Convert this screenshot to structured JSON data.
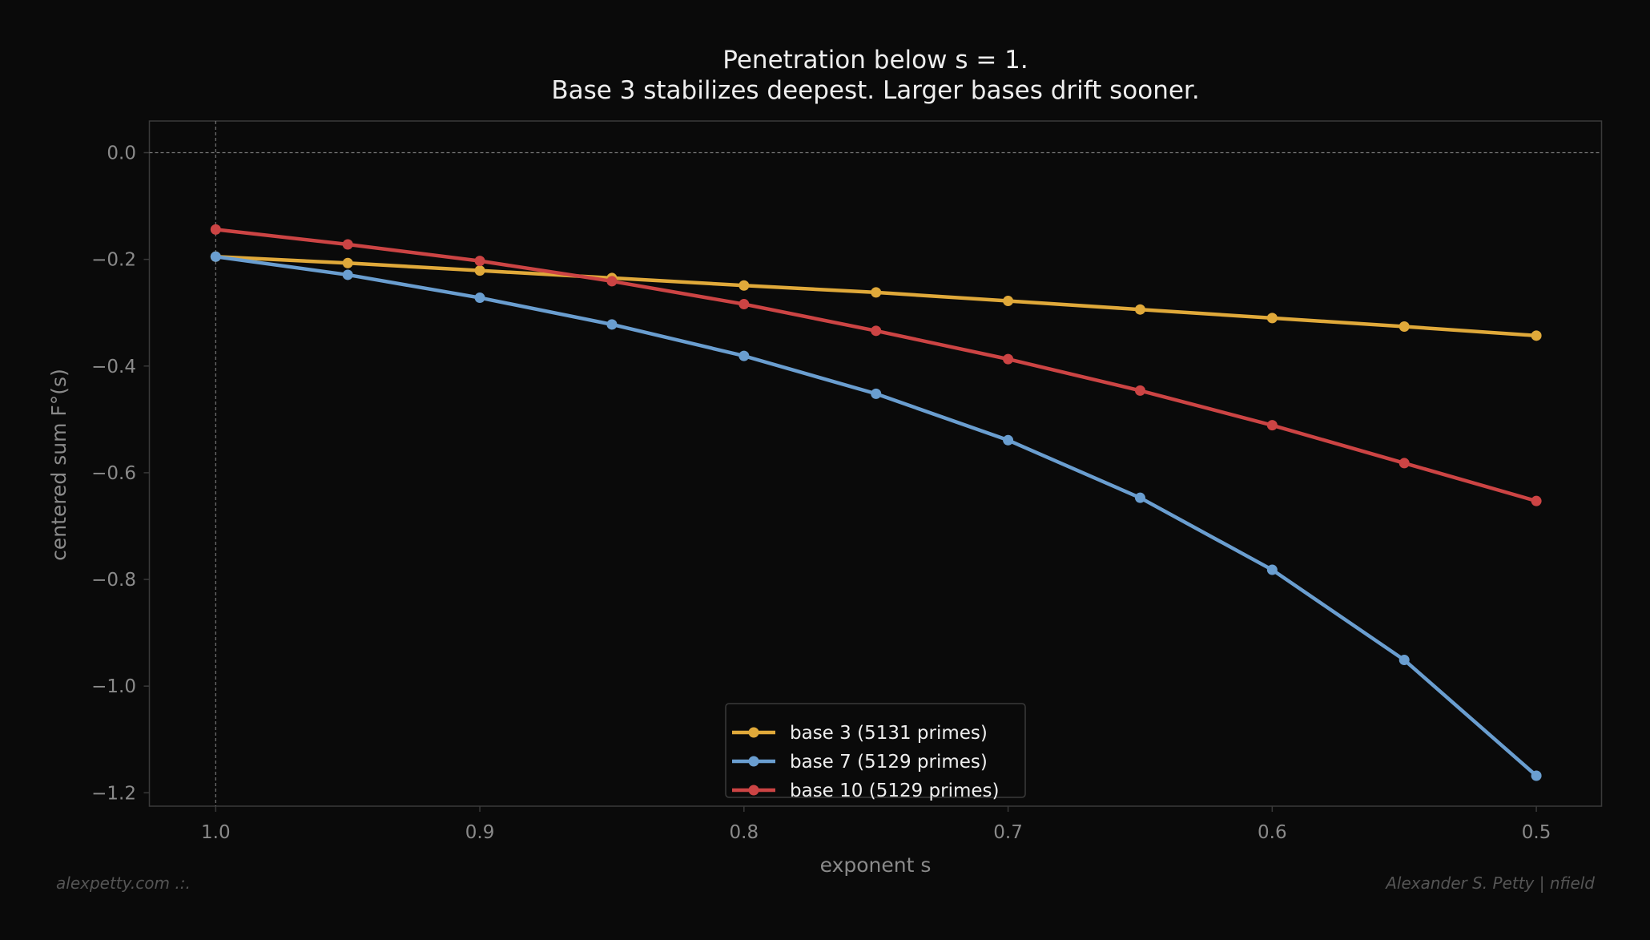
{
  "chart_data": {
    "type": "line",
    "title": "Penetration below s = 1.",
    "subtitle": "Base 3 stabilizes deepest. Larger bases drift sooner.",
    "xlabel": "exponent s",
    "ylabel": "centered sum F°(s)",
    "x": [
      1.0,
      0.95,
      0.9,
      0.85,
      0.8,
      0.75,
      0.7,
      0.65,
      0.6,
      0.55,
      0.5
    ],
    "xlim": [
      1.025,
      0.475
    ],
    "ylim": [
      0.06,
      -1.225
    ],
    "x_inverted": true,
    "xticks": [
      "1.0",
      "0.9",
      "0.8",
      "0.7",
      "0.6",
      "0.5"
    ],
    "xtick_values": [
      1.0,
      0.9,
      0.8,
      0.7,
      0.6,
      0.5
    ],
    "yticks": [
      "0.0",
      "−0.2",
      "−0.4",
      "−0.6",
      "−0.8",
      "−1.0",
      "−1.2"
    ],
    "ytick_values": [
      0.0,
      -0.2,
      -0.4,
      -0.6,
      -0.8,
      -1.0,
      -1.2
    ],
    "reference_lines": {
      "y": 0.0,
      "x": 1.0,
      "style": "dashed"
    },
    "grid": false,
    "legend_position": "bottom-center",
    "series": [
      {
        "name": "base 3 (5131 primes)",
        "color": "#e0a93a",
        "values": [
          -0.195,
          -0.207,
          -0.221,
          -0.235,
          -0.249,
          -0.262,
          -0.278,
          -0.294,
          -0.31,
          -0.326,
          -0.343
        ]
      },
      {
        "name": "base 7 (5129 primes)",
        "color": "#6a9ed0",
        "values": [
          -0.195,
          -0.229,
          -0.272,
          -0.322,
          -0.381,
          -0.452,
          -0.539,
          -0.647,
          -0.782,
          -0.951,
          -1.168
        ]
      },
      {
        "name": "base 10 (5129 primes)",
        "color": "#cc4444",
        "values": [
          -0.144,
          -0.172,
          -0.203,
          -0.241,
          -0.284,
          -0.334,
          -0.387,
          -0.446,
          -0.511,
          -0.582,
          -0.653
        ]
      }
    ]
  },
  "footer": {
    "left": "alexpetty.com  .:.",
    "right": "Alexander S. Petty  |  nfield"
  },
  "colors": {
    "background": "#0a0a0a",
    "axes": "#3a3a3a",
    "text": "#eeeeee",
    "muted": "#8a8a8a"
  }
}
